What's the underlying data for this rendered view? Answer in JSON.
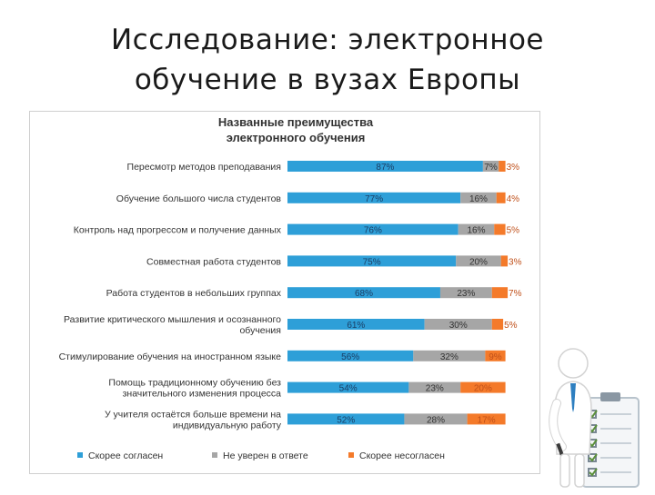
{
  "slide": {
    "title": "Исследование: электронное обучение в вузах Европы"
  },
  "chart_data": {
    "type": "bar",
    "stacked": true,
    "orientation": "horizontal",
    "title": "Названные преимущества электронного обучения",
    "categories": [
      "Пересмотр методов преподавания",
      "Обучение большого числа студентов",
      "Контроль над прогрессом и получение данных",
      "Совместная работа студентов",
      "Работа студентов в небольших группах",
      "Развитие критического мышления и осознанного обучения",
      "Стимулирование обучения на иностранном языке",
      "Помощь традиционному обучению без значительного изменения процесса",
      "У учителя остаётся больше времени на индивидуальную работу"
    ],
    "series": [
      {
        "name": "Скорее согласен",
        "color": "#2e9fd8",
        "values": [
          87,
          77,
          76,
          75,
          68,
          61,
          56,
          54,
          52
        ]
      },
      {
        "name": "Не уверен в ответе",
        "color": "#a6a6a6",
        "values": [
          7,
          16,
          16,
          20,
          23,
          30,
          32,
          23,
          28
        ]
      },
      {
        "name": "Скорее несогласен",
        "color": "#f47a2a",
        "values": [
          3,
          4,
          5,
          3,
          7,
          5,
          9,
          20,
          17
        ]
      }
    ],
    "value_suffix": "%",
    "xlim": [
      0,
      100
    ],
    "grid": false,
    "legend_position": "bottom"
  },
  "illustration": {
    "icon": "person-with-checklist-icon"
  }
}
